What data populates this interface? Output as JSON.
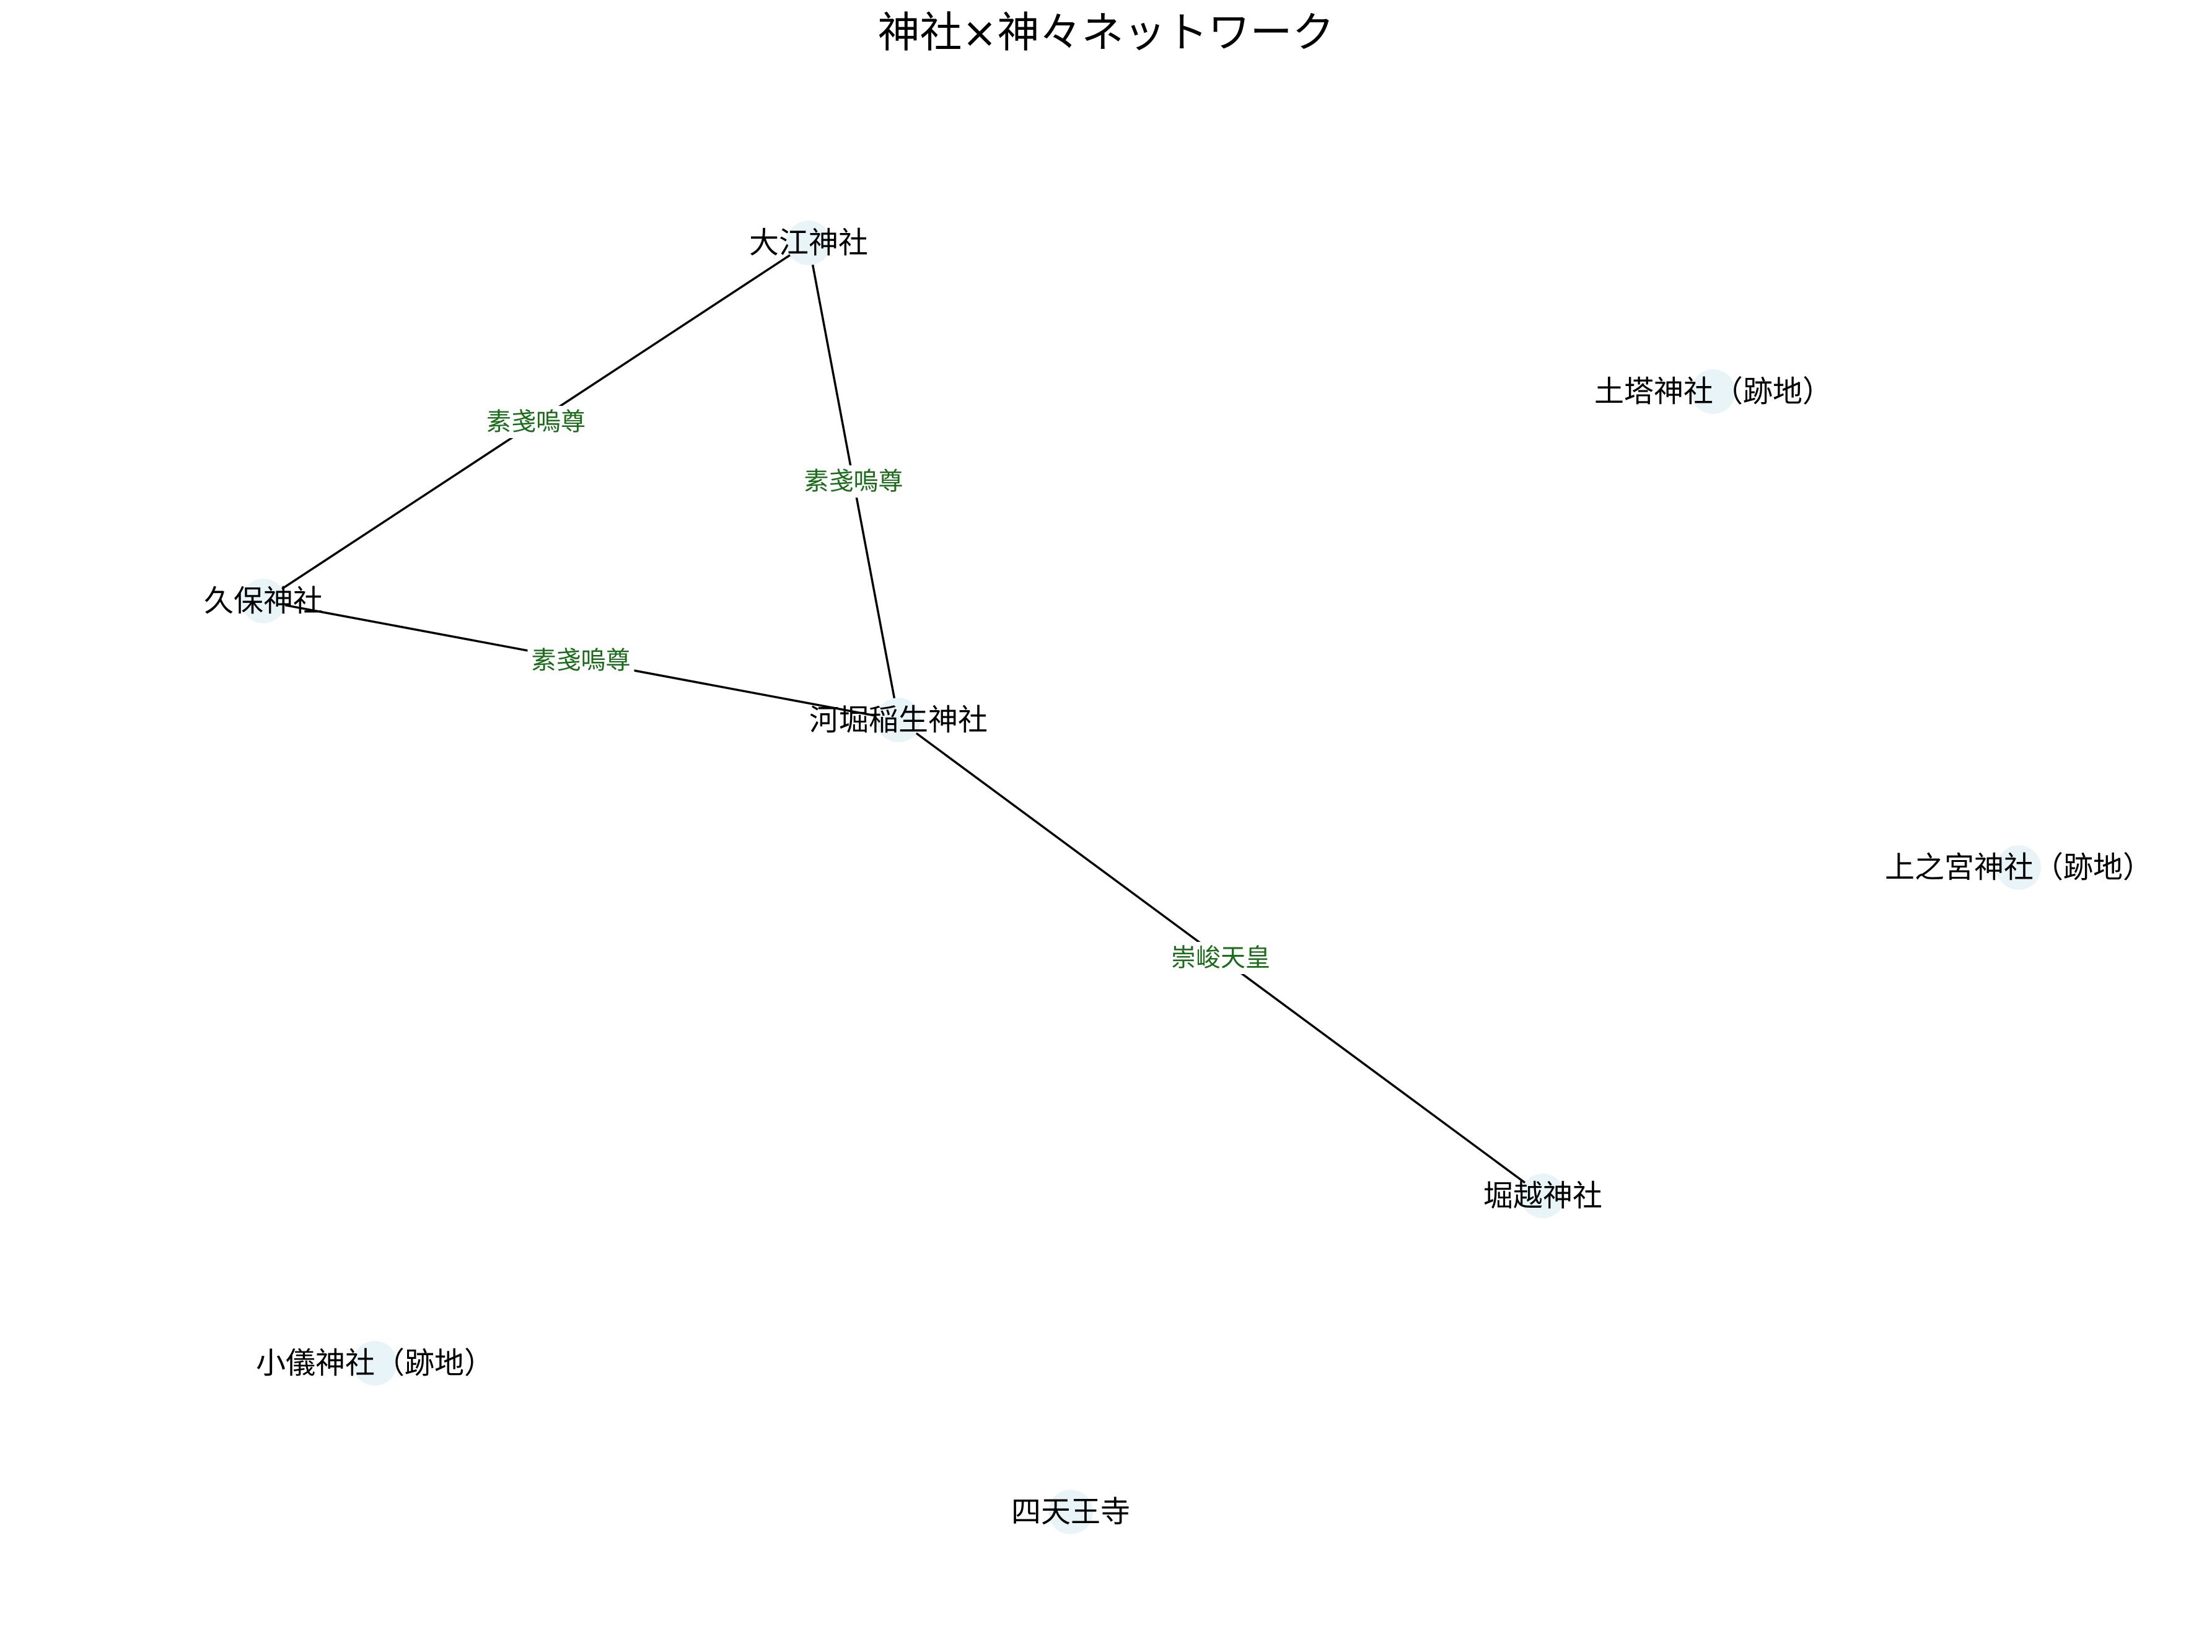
{
  "title": "神社×神々ネットワーク",
  "colors": {
    "node_fill": "#e8f4f8",
    "edge": "#000000",
    "edge_label": "#1a6b1a",
    "background": "#ffffff"
  },
  "nodes": [
    {
      "id": "oe",
      "label": "大江神社"
    },
    {
      "id": "kubo",
      "label": "久保神社"
    },
    {
      "id": "kawahori",
      "label": "河堀稲生神社"
    },
    {
      "id": "horikoshi",
      "label": "堀越神社"
    },
    {
      "id": "doto",
      "label": "土塔神社（跡地）"
    },
    {
      "id": "uenomiya",
      "label": "上之宮神社（跡地）"
    },
    {
      "id": "ogi",
      "label": "小儀神社（跡地）"
    },
    {
      "id": "shitennoji",
      "label": "四天王寺"
    }
  ],
  "edges": [
    {
      "source": "oe",
      "target": "kubo",
      "label": "素戔嗚尊"
    },
    {
      "source": "oe",
      "target": "kawahori",
      "label": "素戔嗚尊"
    },
    {
      "source": "kubo",
      "target": "kawahori",
      "label": "素戔嗚尊"
    },
    {
      "source": "kawahori",
      "target": "horikoshi",
      "label": "崇峻天皇"
    }
  ]
}
